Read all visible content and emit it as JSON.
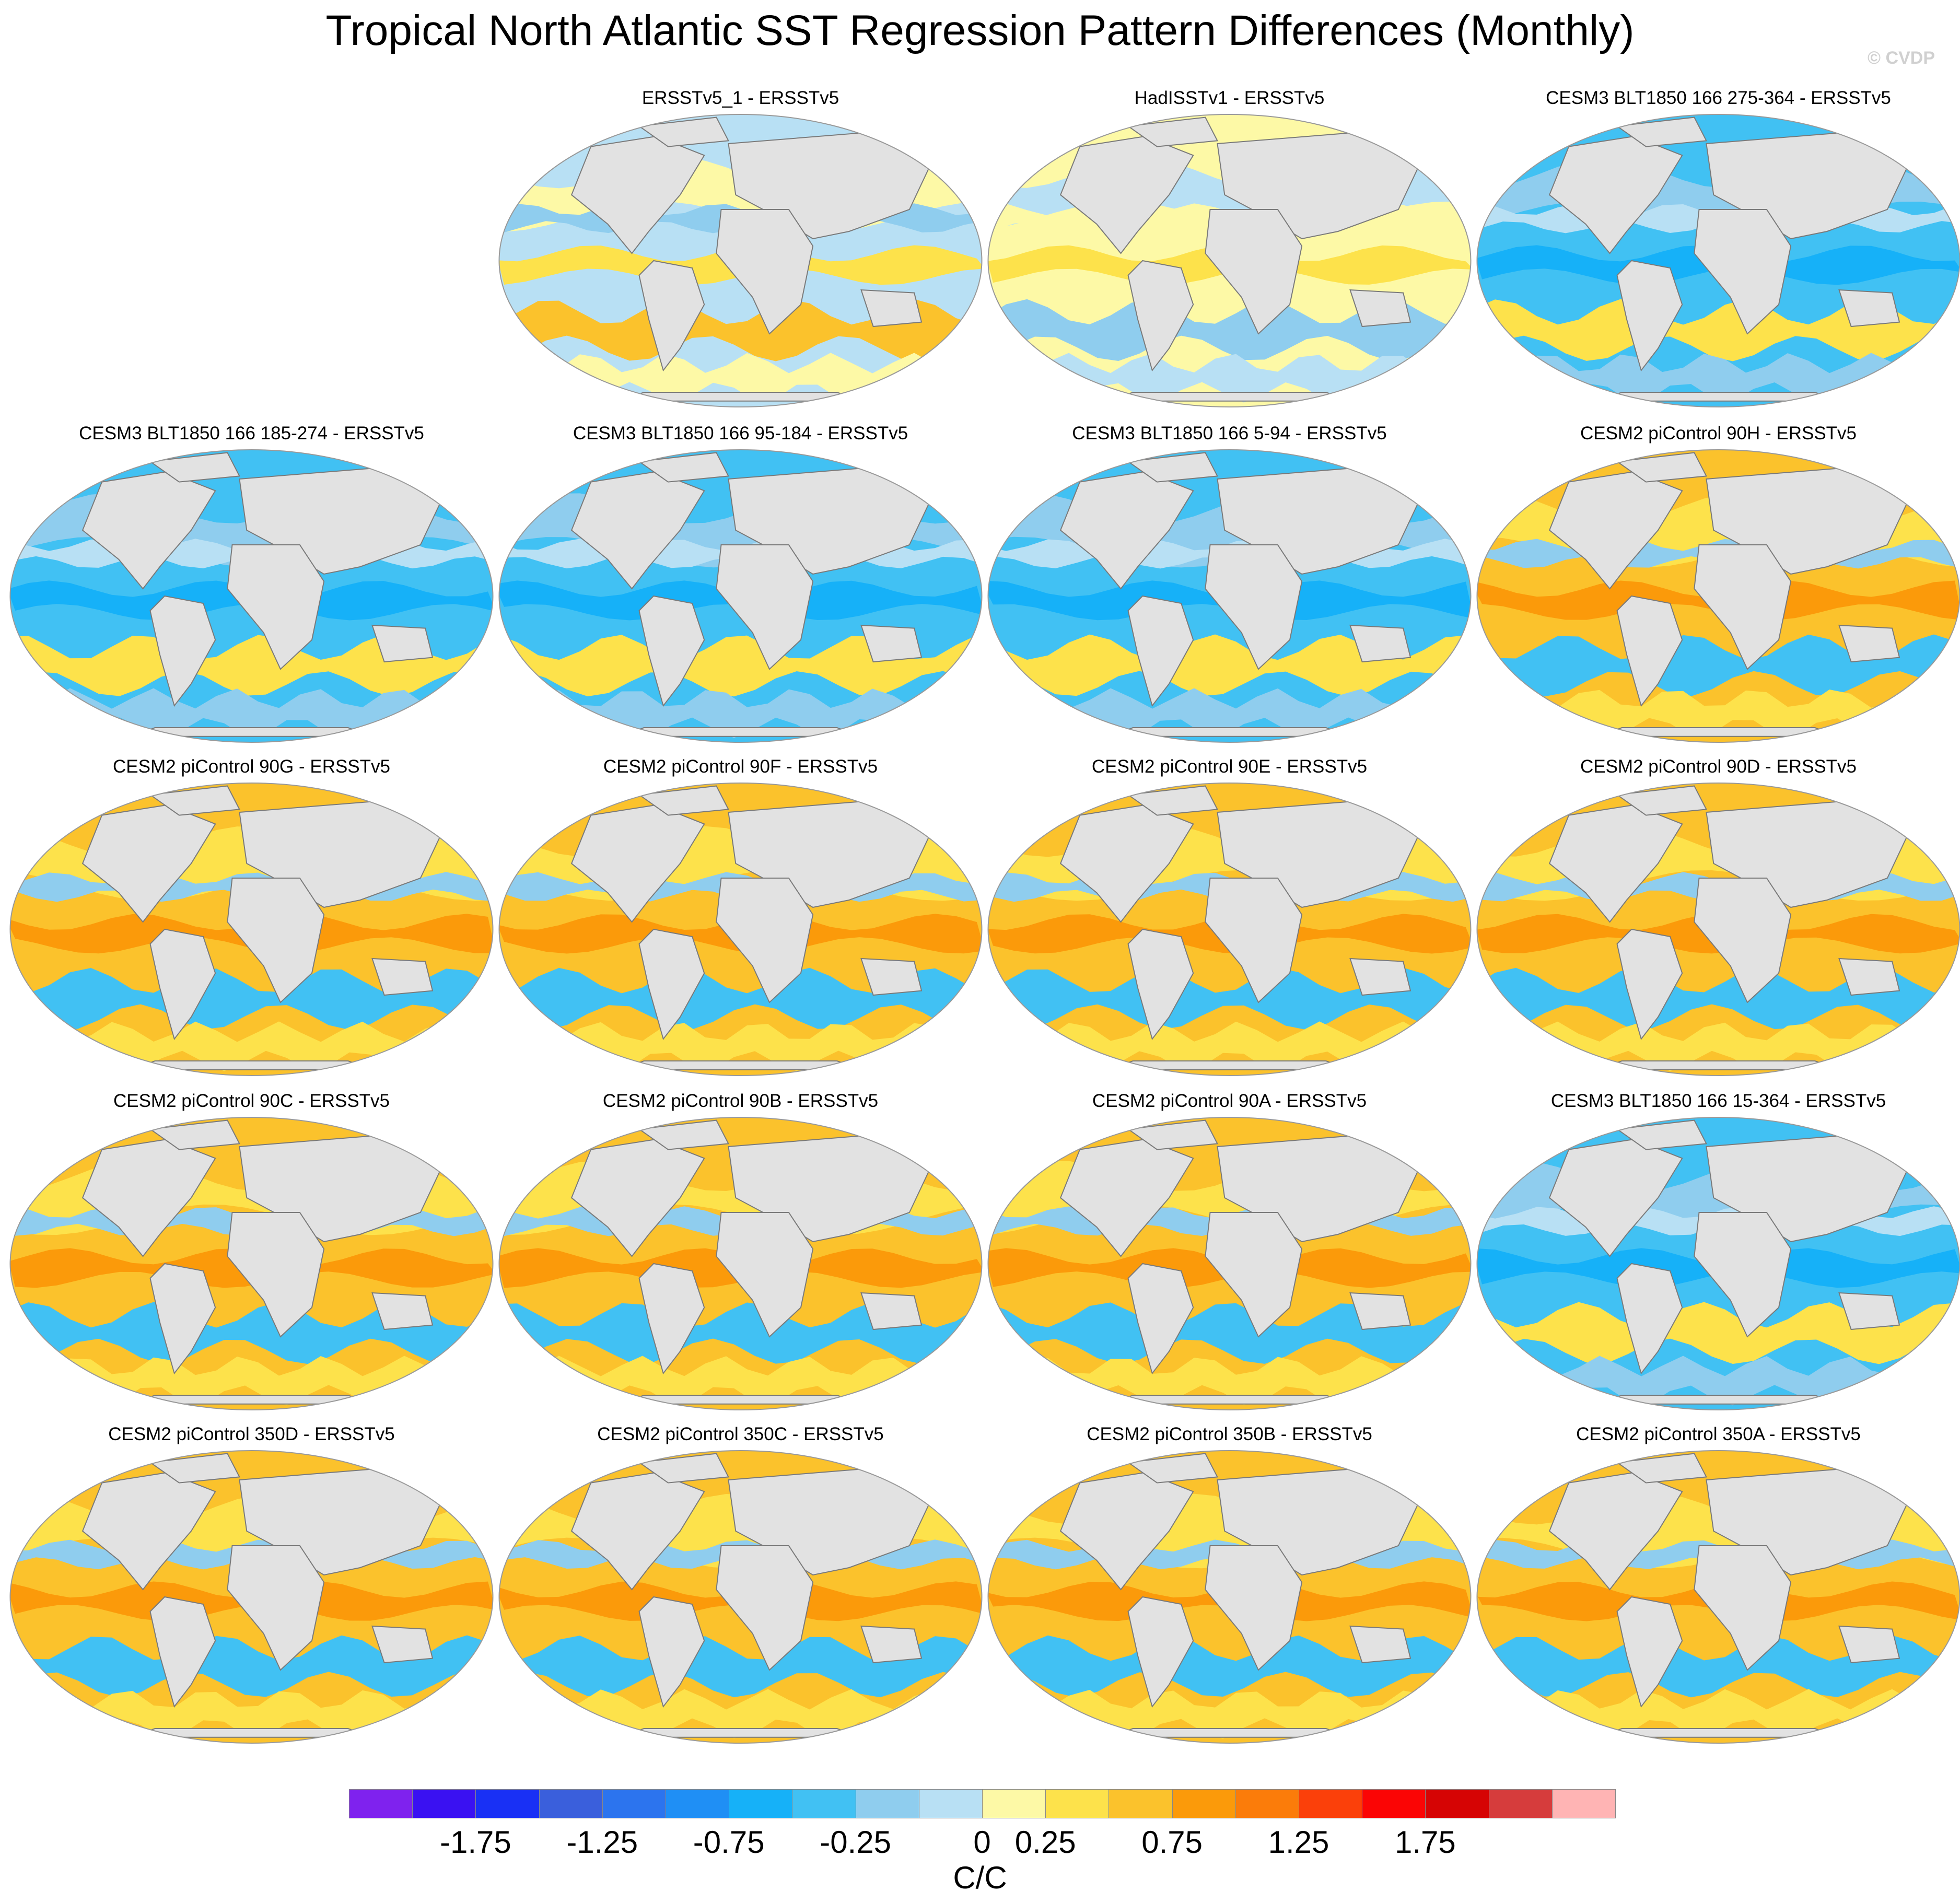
{
  "title": "Tropical North Atlantic SST Regression Pattern Differences (Monthly)",
  "credit": "© CVDP",
  "panels": [
    {
      "label": "ERSSTv5_1 - ERSSTv5",
      "style": "obs"
    },
    {
      "label": "HadISSTv1 - ERSSTv5",
      "style": "had"
    },
    {
      "label": "CESM3 BLT1850 166 275-364 - ERSSTv5",
      "style": "cesm3"
    },
    {
      "label": "CESM3 BLT1850 166 185-274 - ERSSTv5",
      "style": "cesm3"
    },
    {
      "label": "CESM3 BLT1850 166 95-184 - ERSSTv5",
      "style": "cesm3"
    },
    {
      "label": "CESM3 BLT1850 166 5-94 - ERSSTv5",
      "style": "cesm3"
    },
    {
      "label": "CESM2 piControl 90H - ERSSTv5",
      "style": "cesm2"
    },
    {
      "label": "CESM2 piControl 90G - ERSSTv5",
      "style": "cesm2"
    },
    {
      "label": "CESM2 piControl 90F - ERSSTv5",
      "style": "cesm2"
    },
    {
      "label": "CESM2 piControl 90E - ERSSTv5",
      "style": "cesm2"
    },
    {
      "label": "CESM2 piControl 90D - ERSSTv5",
      "style": "cesm2"
    },
    {
      "label": "CESM2 piControl 90C - ERSSTv5",
      "style": "cesm2"
    },
    {
      "label": "CESM2 piControl 90B - ERSSTv5",
      "style": "cesm2"
    },
    {
      "label": "CESM2 piControl 90A - ERSSTv5",
      "style": "cesm2"
    },
    {
      "label": "CESM3 BLT1850 166 15-364 - ERSSTv5",
      "style": "cesm3"
    },
    {
      "label": "CESM2 piControl 350D - ERSSTv5",
      "style": "cesm2"
    },
    {
      "label": "CESM2 piControl 350C - ERSSTv5",
      "style": "cesm2"
    },
    {
      "label": "CESM2 piControl 350B - ERSSTv5",
      "style": "cesm2"
    },
    {
      "label": "CESM2 piControl 350A - ERSSTv5",
      "style": "cesm2"
    }
  ],
  "colorbar": {
    "colors": [
      "#7f22ee",
      "#3a11f2",
      "#1930f5",
      "#3a5fdc",
      "#2c74ee",
      "#1f8ff5",
      "#16b1f8",
      "#41c1f3",
      "#8fcdee",
      "#b8e0f4",
      "#fdf9a6",
      "#fde24b",
      "#fbc22c",
      "#fb9a0a",
      "#fb7c0a",
      "#fb400a",
      "#fb0505",
      "#d60404",
      "#d63c3c",
      "#ffb4b4"
    ],
    "ticks": [
      "-1.75",
      "-1.25",
      "-0.75",
      "-0.25",
      "0",
      "0.25",
      "0.75",
      "1.25",
      "1.75"
    ],
    "units": "C/C"
  }
}
